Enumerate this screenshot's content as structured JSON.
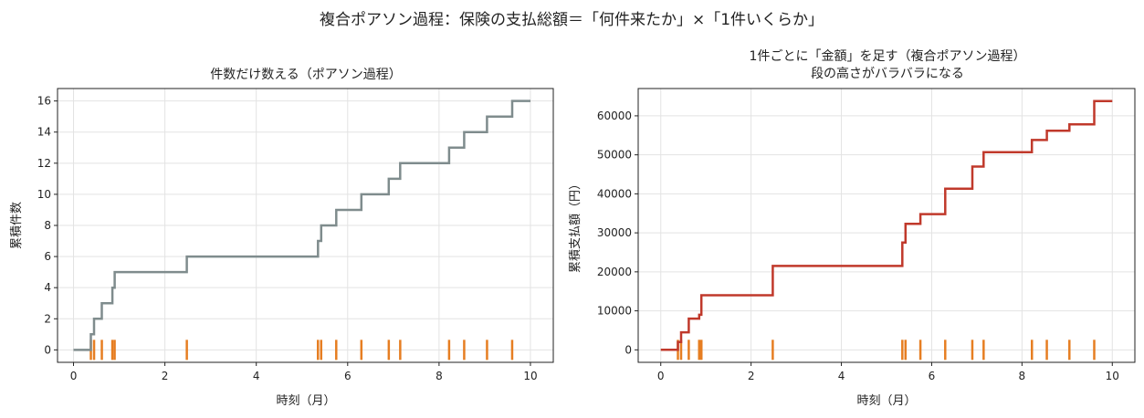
{
  "suptitle": "複合ポアソン過程：保険の支払総額＝「何件来たか」×「1件いくらか」",
  "chart_data": [
    {
      "type": "line",
      "step": "post",
      "title": "件数だけ数える（ポアソン過程）",
      "xlabel": "時刻（月）",
      "ylabel": "累積件数",
      "xlim": [
        -0.35,
        10.5
      ],
      "ylim": [
        -0.8,
        16.8
      ],
      "xticks": [
        0,
        2,
        4,
        6,
        8,
        10
      ],
      "yticks": [
        0,
        2,
        4,
        6,
        8,
        10,
        12,
        14,
        16
      ],
      "grid": true,
      "line_color": "#7f8c8d",
      "rug_color": "#e67e22",
      "x": [
        0,
        0.38,
        0.45,
        0.62,
        0.85,
        0.9,
        2.48,
        5.35,
        5.42,
        5.75,
        6.3,
        6.9,
        7.15,
        8.22,
        8.55,
        9.05,
        9.6,
        10.0
      ],
      "y": [
        0,
        1,
        2,
        3,
        4,
        5,
        6,
        7,
        8,
        9,
        10,
        11,
        12,
        13,
        14,
        15,
        16,
        16
      ],
      "events": [
        0.38,
        0.45,
        0.62,
        0.85,
        0.9,
        2.48,
        5.35,
        5.42,
        5.75,
        6.3,
        6.9,
        7.15,
        8.22,
        8.55,
        9.05,
        9.6
      ]
    },
    {
      "type": "line",
      "step": "post",
      "title": "1件ごとに「金額」を足す（複合ポアソン過程）\n段の高さがバラバラになる",
      "xlabel": "時刻（月）",
      "ylabel": "累積支払額（円）",
      "xlim": [
        -0.5,
        10.5
      ],
      "ylim": [
        -3200,
        67000
      ],
      "xticks": [
        0,
        2,
        4,
        6,
        8,
        10
      ],
      "yticks": [
        0,
        10000,
        20000,
        30000,
        40000,
        50000,
        60000
      ],
      "grid": true,
      "line_color": "#c0392b",
      "rug_color": "#e67e22",
      "x": [
        0,
        0.38,
        0.45,
        0.62,
        0.85,
        0.9,
        2.48,
        5.35,
        5.42,
        5.75,
        6.3,
        6.9,
        7.15,
        8.22,
        8.55,
        9.05,
        9.6,
        10.0
      ],
      "y": [
        0,
        2000,
        4500,
        8000,
        9000,
        14000,
        21500,
        27500,
        32300,
        34800,
        41300,
        47000,
        50700,
        53800,
        56200,
        57800,
        63800,
        63800
      ],
      "events": [
        0.38,
        0.45,
        0.62,
        0.85,
        0.9,
        2.48,
        5.35,
        5.42,
        5.75,
        6.3,
        6.9,
        7.15,
        8.22,
        8.55,
        9.05,
        9.6
      ]
    }
  ]
}
